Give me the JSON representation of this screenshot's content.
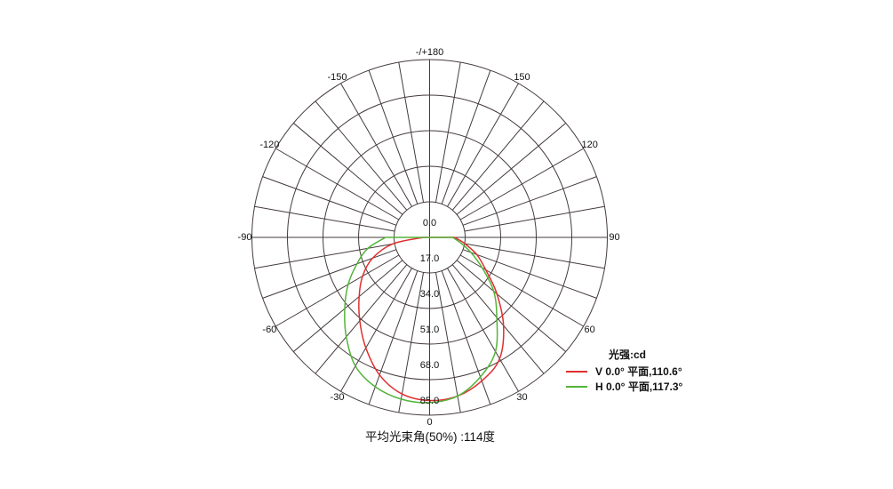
{
  "chart_data": {
    "type": "polar_line",
    "title": "",
    "unit_label": "光强:cd",
    "orientation": {
      "zero_deg_direction": "down",
      "positive_angles": "right-clockwise"
    },
    "r_axis": {
      "max_value": 85,
      "ring_step": 17,
      "rings": [
        {
          "value": 0,
          "label": "0.0"
        },
        {
          "value": 17,
          "label": "17.0"
        },
        {
          "value": 34,
          "label": "34.0"
        },
        {
          "value": 51,
          "label": "51.0"
        },
        {
          "value": 68,
          "label": "68.0"
        },
        {
          "value": 85,
          "label": "85.0"
        }
      ]
    },
    "angle_labels": [
      {
        "deg": 180,
        "label": "-/+180"
      },
      {
        "deg": 150,
        "label": "150"
      },
      {
        "deg": 120,
        "label": "120"
      },
      {
        "deg": 90,
        "label": "90"
      },
      {
        "deg": 60,
        "label": "60"
      },
      {
        "deg": 30,
        "label": "30"
      },
      {
        "deg": 0,
        "label": "0"
      },
      {
        "deg": -30,
        "label": "-30"
      },
      {
        "deg": -60,
        "label": "-60"
      },
      {
        "deg": -90,
        "label": "-90"
      },
      {
        "deg": -120,
        "label": "-120"
      },
      {
        "deg": -150,
        "label": "-150"
      }
    ],
    "grid": {
      "spoke_step_deg": 10,
      "color": "#453b3b"
    },
    "series": [
      {
        "id": "V",
        "name": "V 0.0° 平面,110.6°",
        "beam_angle_deg": 110.6,
        "color": "#e02f2f",
        "angles_deg": [
          -90,
          -80,
          -70,
          -60,
          -50,
          -40,
          -30,
          -20,
          -10,
          0,
          10,
          20,
          30,
          40,
          50,
          60,
          70,
          80,
          90
        ],
        "values_cd": [
          3,
          18,
          29,
          37,
          44,
          52,
          61,
          70,
          76,
          78,
          77,
          73,
          67,
          55,
          42,
          31,
          24,
          17,
          12
        ]
      },
      {
        "id": "H",
        "name": "H 0.0° 平面,117.3°",
        "beam_angle_deg": 117.3,
        "color": "#53b43a",
        "angles_deg": [
          -90,
          -80,
          -70,
          -60,
          -50,
          -40,
          -30,
          -20,
          -10,
          0,
          10,
          20,
          30,
          40,
          50,
          60,
          70,
          80,
          90
        ],
        "values_cd": [
          21,
          30,
          37,
          45,
          53,
          62,
          71,
          76,
          78.5,
          79,
          77,
          71,
          63,
          50,
          40,
          29,
          21,
          15,
          11
        ]
      }
    ]
  },
  "legend": {
    "title": "光强:cd",
    "items": [
      {
        "label": "V 0.0° 平面,110.6°",
        "color": "#e02f2f"
      },
      {
        "label": "H 0.0° 平面,117.3°",
        "color": "#53b43a"
      }
    ]
  },
  "caption": {
    "text": "平均光束角(50%) :114度"
  }
}
